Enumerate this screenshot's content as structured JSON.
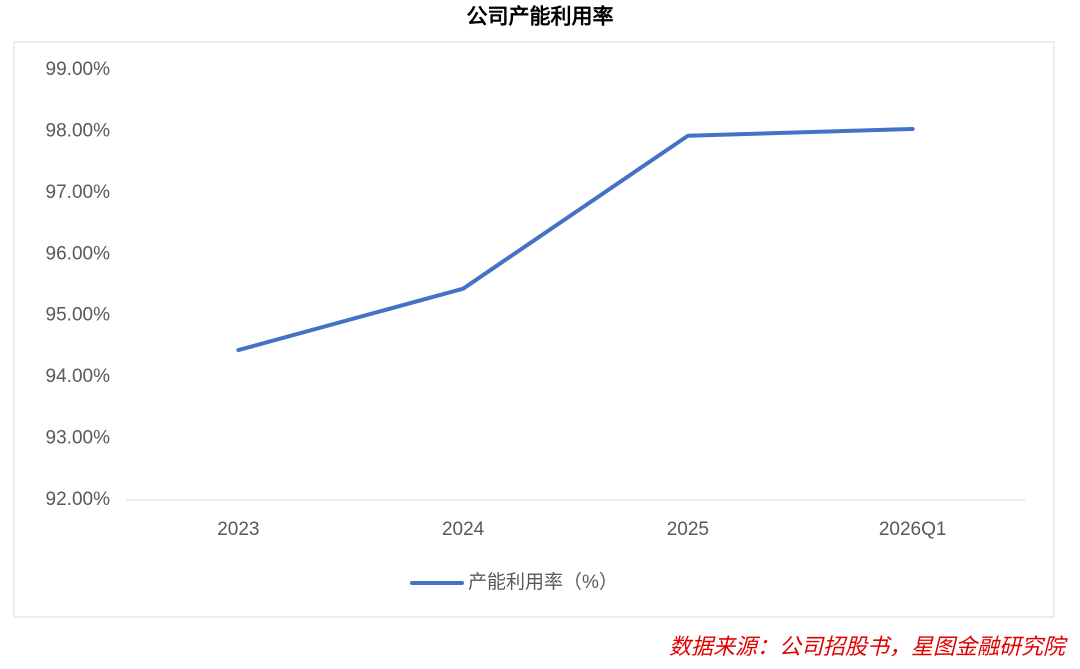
{
  "chart_data": {
    "type": "line",
    "title": "公司产能利用率",
    "categories": [
      "2023",
      "2024",
      "2025",
      "2026Q1"
    ],
    "series": [
      {
        "name": "产能利用率（%）",
        "color": "#4472c4",
        "values": [
          94.44,
          95.44,
          97.93,
          98.04
        ]
      }
    ],
    "ylim": [
      92,
      99
    ],
    "yticks": [
      {
        "value": 92,
        "label": "92.00%"
      },
      {
        "value": 93,
        "label": "93.00%"
      },
      {
        "value": 94,
        "label": "94.00%"
      },
      {
        "value": 95,
        "label": "95.00%"
      },
      {
        "value": 96,
        "label": "96.00%"
      },
      {
        "value": 97,
        "label": "97.00%"
      },
      {
        "value": 98,
        "label": "98.00%"
      },
      {
        "value": 99,
        "label": "99.00%"
      }
    ],
    "grid": false,
    "source": "数据来源：公司招股书，星图金融研究院"
  }
}
